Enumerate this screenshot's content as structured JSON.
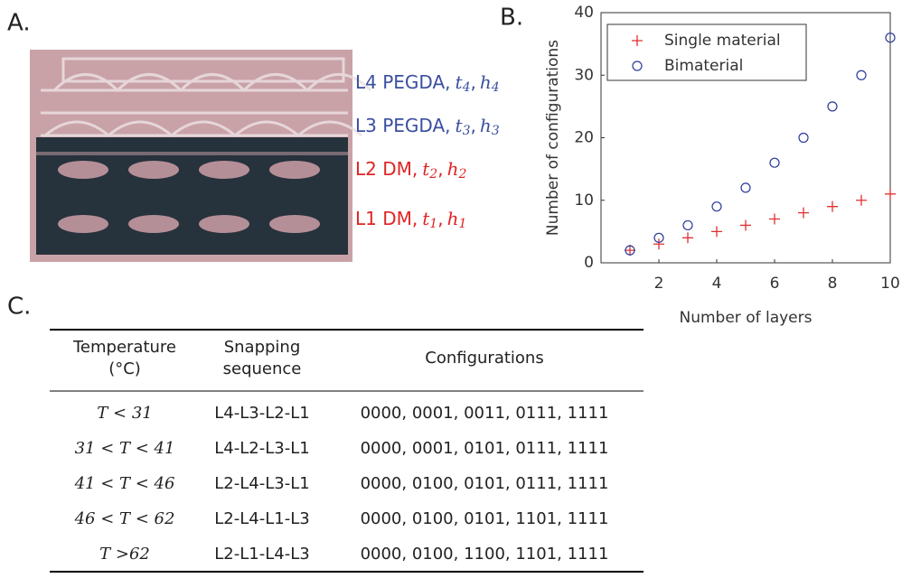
{
  "panels": {
    "a": "A.",
    "b": "B.",
    "c": "C."
  },
  "photo": {
    "labels": [
      {
        "prefix": "L4 PEGDA,",
        "var1": "t",
        "sub1": "4",
        "sep": ",",
        "var2": "h",
        "sub2": "4",
        "color": "#3a4fa0"
      },
      {
        "prefix": "L3 PEGDA,",
        "var1": "t",
        "sub1": "3",
        "sep": ",",
        "var2": "h",
        "sub2": "3",
        "color": "#3a4fa0"
      },
      {
        "prefix": "L2 DM,",
        "var1": "t",
        "sub1": "2",
        "sep": ",",
        "var2": "h",
        "sub2": "2",
        "color": "#e02424"
      },
      {
        "prefix": "L1 DM,",
        "var1": "t",
        "sub1": "1",
        "sep": ",",
        "var2": "h",
        "sub2": "1",
        "color": "#e02424"
      }
    ]
  },
  "chart_data": {
    "type": "scatter",
    "xlabel": "Number of layers",
    "ylabel": "Number of configurations",
    "x": [
      1,
      2,
      3,
      4,
      5,
      6,
      7,
      8,
      9,
      10
    ],
    "series": [
      {
        "name": "Single material",
        "color": "#e03030",
        "marker": "plus",
        "values": [
          2,
          3,
          4,
          5,
          6,
          7,
          8,
          9,
          10,
          11
        ]
      },
      {
        "name": "Bimaterial",
        "color": "#2a3a9a",
        "marker": "circle",
        "values": [
          2,
          4,
          6,
          9,
          12,
          16,
          20,
          25,
          30,
          36
        ]
      }
    ],
    "xlim": [
      0,
      10
    ],
    "xticks": [
      2,
      4,
      6,
      8,
      10
    ],
    "ylim": [
      0,
      40
    ],
    "yticks": [
      0,
      10,
      20,
      30,
      40
    ],
    "legend": "upper-left"
  },
  "table": {
    "header": [
      [
        "Temperature",
        "(°C)"
      ],
      [
        "Snapping",
        "sequence"
      ],
      [
        "Configurations"
      ]
    ],
    "rows": [
      [
        "T < 31",
        "L4-L3-L2-L1",
        "0000, 0001, 0011, 0111, 1111"
      ],
      [
        "31 < T < 41",
        "L4-L2-L3-L1",
        "0000, 0001, 0101, 0111, 1111"
      ],
      [
        "41 < T < 46",
        "L2-L4-L3-L1",
        "0000, 0100, 0101, 0111, 1111"
      ],
      [
        "46 < T < 62",
        "L2-L4-L1-L3",
        "0000, 0100, 0101, 1101, 1111"
      ],
      [
        "T >62",
        "L2-L1-L4-L3",
        "0000, 0100, 1100, 1101, 1111"
      ]
    ]
  }
}
